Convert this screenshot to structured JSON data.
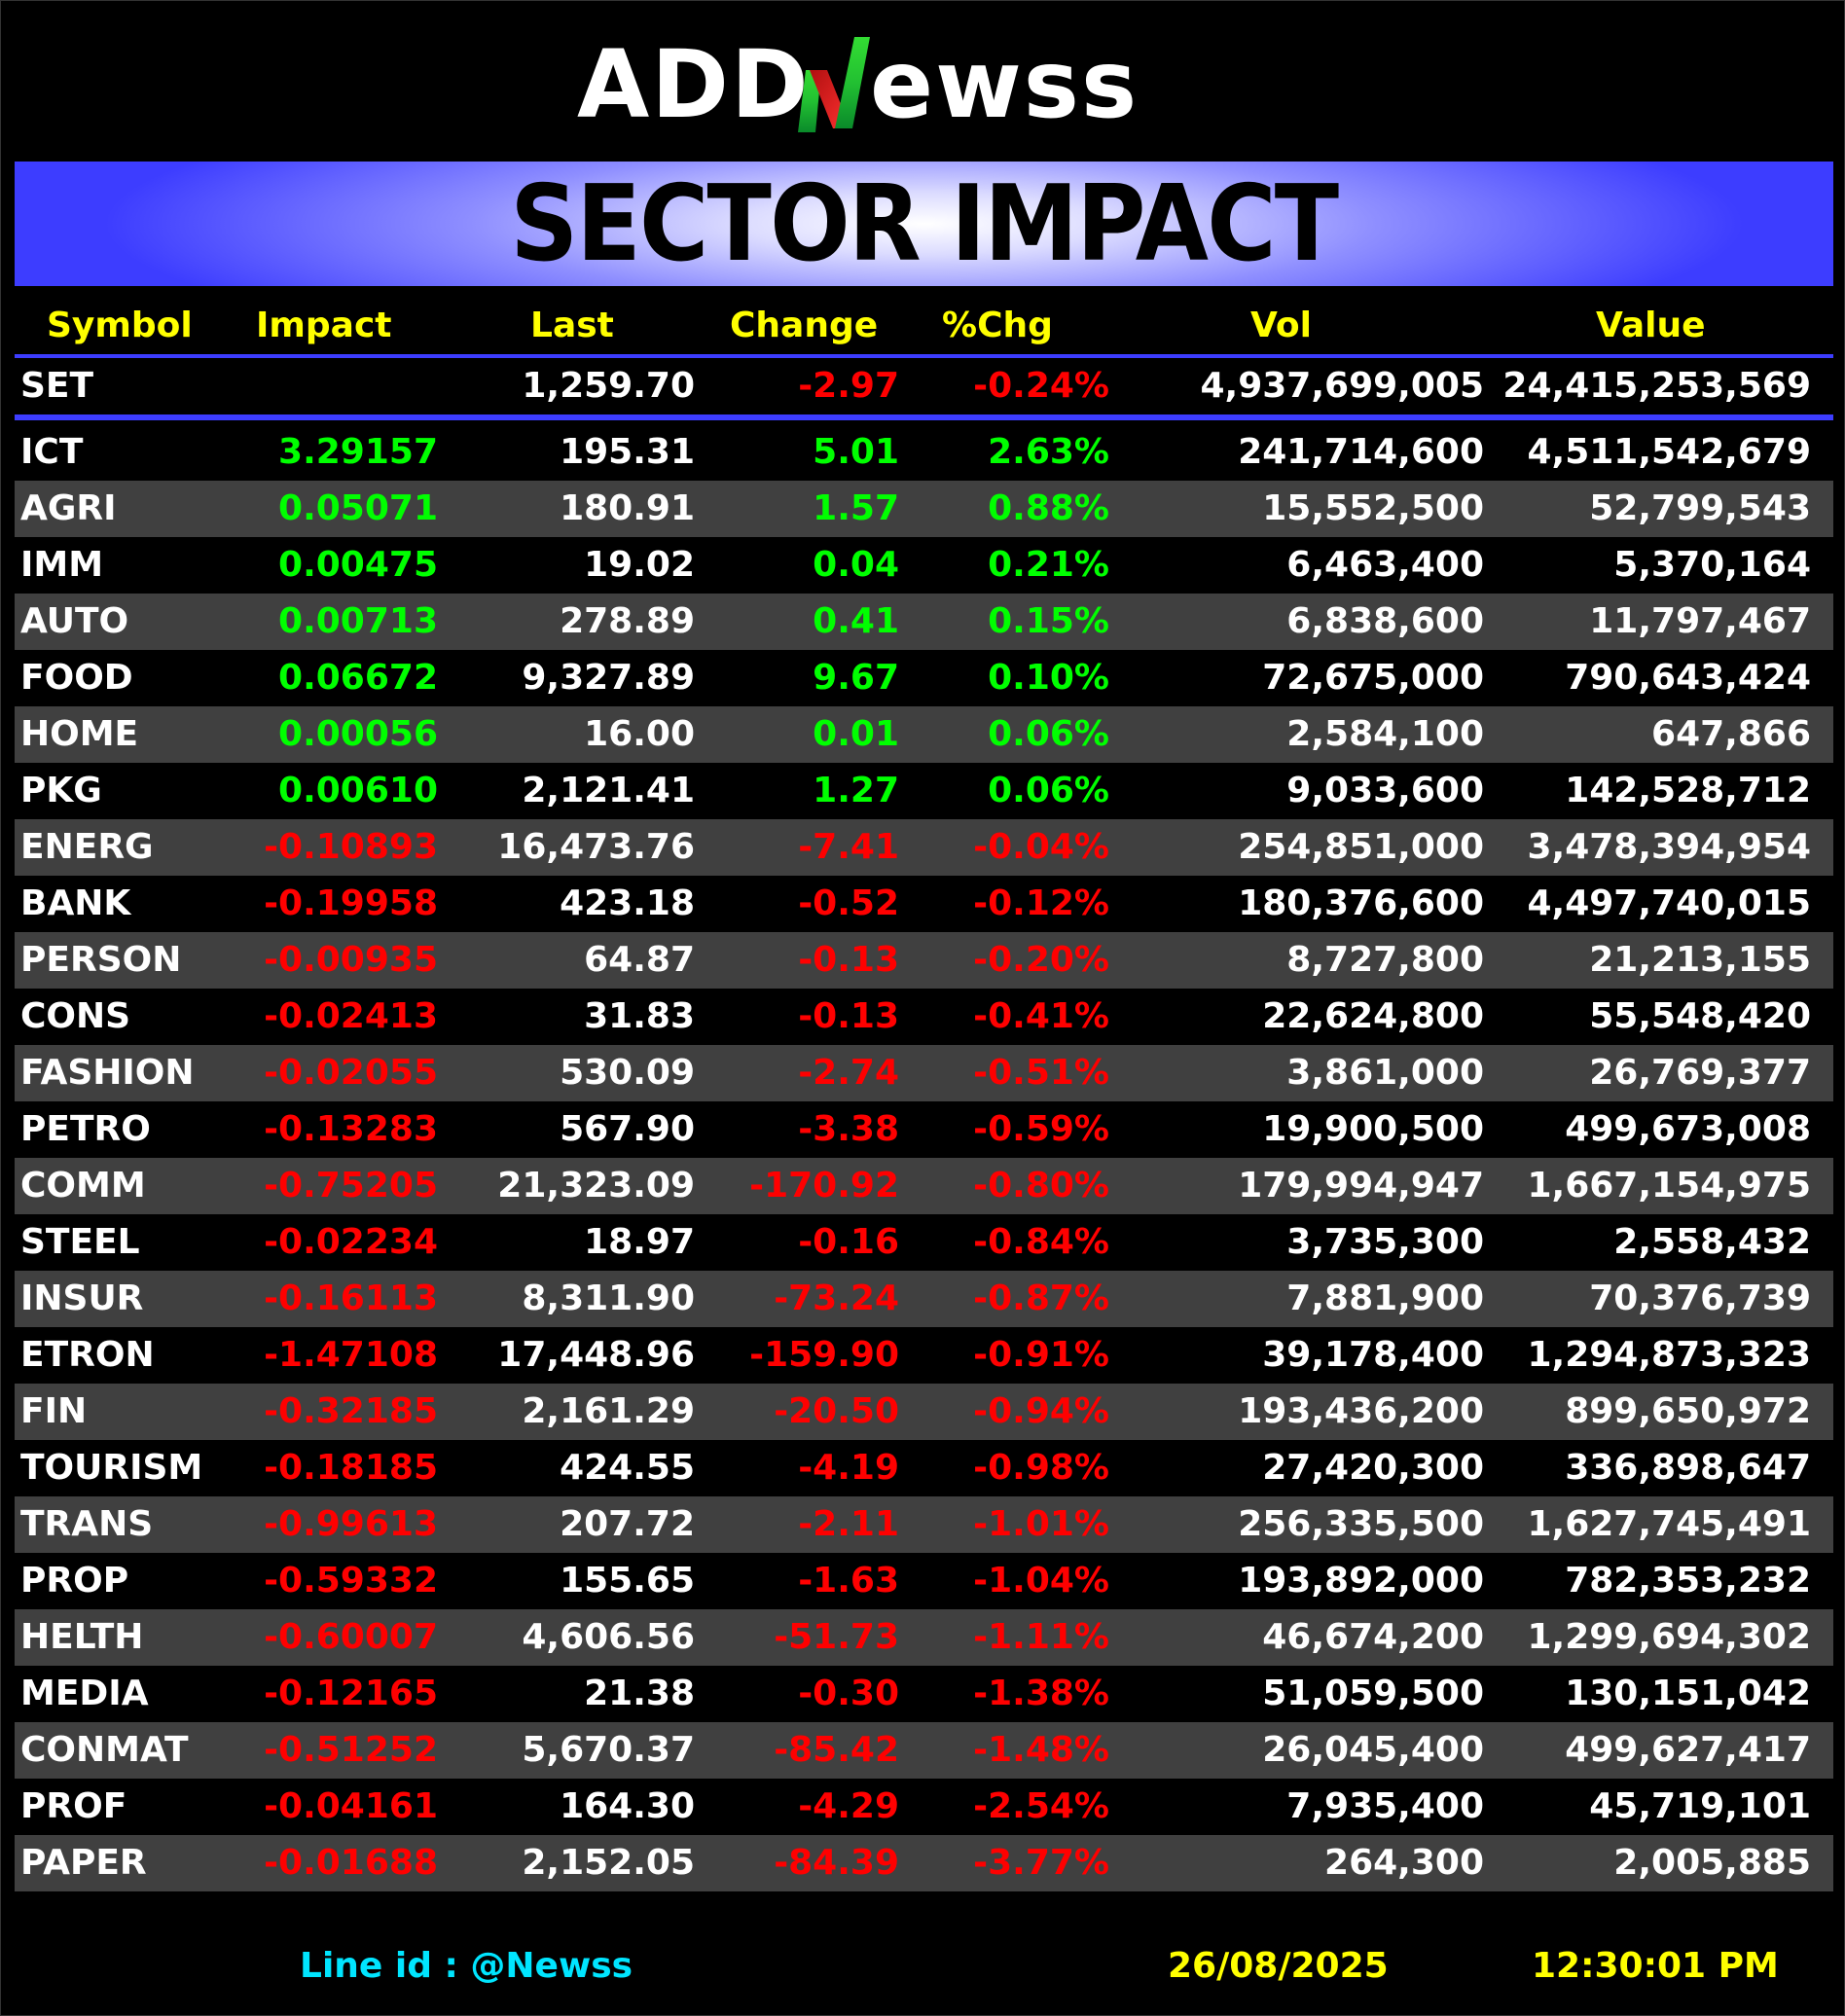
{
  "brand": {
    "part1": "ADD",
    "part2": "ewss"
  },
  "title": "SECTOR IMPACT",
  "headers": {
    "symbol": "Symbol",
    "impact": "Impact",
    "last": "Last",
    "change": "Change",
    "pct": "%Chg",
    "vol": "Vol",
    "value": "Value"
  },
  "index": {
    "symbol": "SET",
    "impact": "",
    "last": "1,259.70",
    "change": "-2.97",
    "pct": "-0.24%",
    "vol": "4,937,699,005",
    "value": "24,415,253,569"
  },
  "rows": [
    {
      "symbol": "ICT",
      "impact": "3.29157",
      "last": "195.31",
      "change": "5.01",
      "pct": "2.63%",
      "vol": "241,714,600",
      "value": "4,511,542,679",
      "dir": "pos"
    },
    {
      "symbol": "AGRI",
      "impact": "0.05071",
      "last": "180.91",
      "change": "1.57",
      "pct": "0.88%",
      "vol": "15,552,500",
      "value": "52,799,543",
      "dir": "pos"
    },
    {
      "symbol": "IMM",
      "impact": "0.00475",
      "last": "19.02",
      "change": "0.04",
      "pct": "0.21%",
      "vol": "6,463,400",
      "value": "5,370,164",
      "dir": "pos"
    },
    {
      "symbol": "AUTO",
      "impact": "0.00713",
      "last": "278.89",
      "change": "0.41",
      "pct": "0.15%",
      "vol": "6,838,600",
      "value": "11,797,467",
      "dir": "pos"
    },
    {
      "symbol": "FOOD",
      "impact": "0.06672",
      "last": "9,327.89",
      "change": "9.67",
      "pct": "0.10%",
      "vol": "72,675,000",
      "value": "790,643,424",
      "dir": "pos"
    },
    {
      "symbol": "HOME",
      "impact": "0.00056",
      "last": "16.00",
      "change": "0.01",
      "pct": "0.06%",
      "vol": "2,584,100",
      "value": "647,866",
      "dir": "pos"
    },
    {
      "symbol": "PKG",
      "impact": "0.00610",
      "last": "2,121.41",
      "change": "1.27",
      "pct": "0.06%",
      "vol": "9,033,600",
      "value": "142,528,712",
      "dir": "pos"
    },
    {
      "symbol": "ENERG",
      "impact": "-0.10893",
      "last": "16,473.76",
      "change": "-7.41",
      "pct": "-0.04%",
      "vol": "254,851,000",
      "value": "3,478,394,954",
      "dir": "neg"
    },
    {
      "symbol": "BANK",
      "impact": "-0.19958",
      "last": "423.18",
      "change": "-0.52",
      "pct": "-0.12%",
      "vol": "180,376,600",
      "value": "4,497,740,015",
      "dir": "neg"
    },
    {
      "symbol": "PERSON",
      "impact": "-0.00935",
      "last": "64.87",
      "change": "-0.13",
      "pct": "-0.20%",
      "vol": "8,727,800",
      "value": "21,213,155",
      "dir": "neg"
    },
    {
      "symbol": "CONS",
      "impact": "-0.02413",
      "last": "31.83",
      "change": "-0.13",
      "pct": "-0.41%",
      "vol": "22,624,800",
      "value": "55,548,420",
      "dir": "neg"
    },
    {
      "symbol": "FASHION",
      "impact": "-0.02055",
      "last": "530.09",
      "change": "-2.74",
      "pct": "-0.51%",
      "vol": "3,861,000",
      "value": "26,769,377",
      "dir": "neg"
    },
    {
      "symbol": "PETRO",
      "impact": "-0.13283",
      "last": "567.90",
      "change": "-3.38",
      "pct": "-0.59%",
      "vol": "19,900,500",
      "value": "499,673,008",
      "dir": "neg"
    },
    {
      "symbol": "COMM",
      "impact": "-0.75205",
      "last": "21,323.09",
      "change": "-170.92",
      "pct": "-0.80%",
      "vol": "179,994,947",
      "value": "1,667,154,975",
      "dir": "neg"
    },
    {
      "symbol": "STEEL",
      "impact": "-0.02234",
      "last": "18.97",
      "change": "-0.16",
      "pct": "-0.84%",
      "vol": "3,735,300",
      "value": "2,558,432",
      "dir": "neg"
    },
    {
      "symbol": "INSUR",
      "impact": "-0.16113",
      "last": "8,311.90",
      "change": "-73.24",
      "pct": "-0.87%",
      "vol": "7,881,900",
      "value": "70,376,739",
      "dir": "neg"
    },
    {
      "symbol": "ETRON",
      "impact": "-1.47108",
      "last": "17,448.96",
      "change": "-159.90",
      "pct": "-0.91%",
      "vol": "39,178,400",
      "value": "1,294,873,323",
      "dir": "neg"
    },
    {
      "symbol": "FIN",
      "impact": "-0.32185",
      "last": "2,161.29",
      "change": "-20.50",
      "pct": "-0.94%",
      "vol": "193,436,200",
      "value": "899,650,972",
      "dir": "neg"
    },
    {
      "symbol": "TOURISM",
      "impact": "-0.18185",
      "last": "424.55",
      "change": "-4.19",
      "pct": "-0.98%",
      "vol": "27,420,300",
      "value": "336,898,647",
      "dir": "neg"
    },
    {
      "symbol": "TRANS",
      "impact": "-0.99613",
      "last": "207.72",
      "change": "-2.11",
      "pct": "-1.01%",
      "vol": "256,335,500",
      "value": "1,627,745,491",
      "dir": "neg"
    },
    {
      "symbol": "PROP",
      "impact": "-0.59332",
      "last": "155.65",
      "change": "-1.63",
      "pct": "-1.04%",
      "vol": "193,892,000",
      "value": "782,353,232",
      "dir": "neg"
    },
    {
      "symbol": "HELTH",
      "impact": "-0.60007",
      "last": "4,606.56",
      "change": "-51.73",
      "pct": "-1.11%",
      "vol": "46,674,200",
      "value": "1,299,694,302",
      "dir": "neg"
    },
    {
      "symbol": "MEDIA",
      "impact": "-0.12165",
      "last": "21.38",
      "change": "-0.30",
      "pct": "-1.38%",
      "vol": "51,059,500",
      "value": "130,151,042",
      "dir": "neg"
    },
    {
      "symbol": "CONMAT",
      "impact": "-0.51252",
      "last": "5,670.37",
      "change": "-85.42",
      "pct": "-1.48%",
      "vol": "26,045,400",
      "value": "499,627,417",
      "dir": "neg"
    },
    {
      "symbol": "PROF",
      "impact": "-0.04161",
      "last": "164.30",
      "change": "-4.29",
      "pct": "-2.54%",
      "vol": "7,935,400",
      "value": "45,719,101",
      "dir": "neg"
    },
    {
      "symbol": "PAPER",
      "impact": "-0.01688",
      "last": "2,152.05",
      "change": "-84.39",
      "pct": "-3.77%",
      "vol": "264,300",
      "value": "2,005,885",
      "dir": "neg"
    }
  ],
  "footer": {
    "line_id": "Line id  : @Newss",
    "date": "26/08/2025",
    "time": "12:30:01 PM"
  },
  "colors": {
    "positive": "#00ff00",
    "negative": "#ff0000",
    "header": "#ffff00",
    "accent": "#3d3dff",
    "line_id": "#00e5ff"
  }
}
